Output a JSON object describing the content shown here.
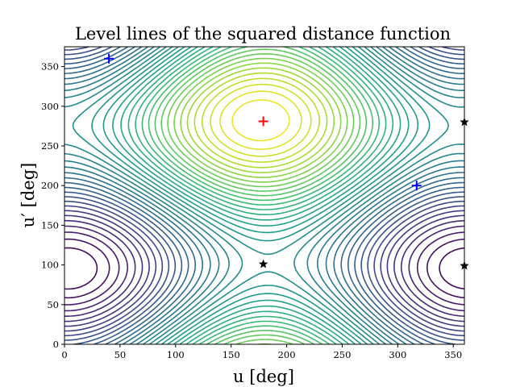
{
  "chart_data": {
    "type": "contour",
    "title": "Level lines of the squared distance function",
    "xlabel": "u [deg]",
    "ylabel": "u′ [deg]",
    "xlim": [
      0,
      360
    ],
    "ylim": [
      0,
      375
    ],
    "xticks": [
      0,
      50,
      100,
      150,
      200,
      250,
      300,
      350
    ],
    "yticks": [
      0,
      50,
      100,
      150,
      200,
      250,
      300,
      350
    ],
    "grid": false,
    "colormap": [
      "#440154",
      "#482878",
      "#3e4989",
      "#31688e",
      "#26828e",
      "#1f9e89",
      "#35b779",
      "#6ece58",
      "#b5de2b",
      "#fde725"
    ],
    "markers": [
      {
        "symbol": "plus",
        "color": "#ff0000",
        "x": 179,
        "y": 281
      },
      {
        "symbol": "plus",
        "color": "#0000ff",
        "x": 40,
        "y": 360
      },
      {
        "symbol": "plus",
        "color": "#0000ff",
        "x": 317,
        "y": 200
      },
      {
        "symbol": "star",
        "color": "#000000",
        "x": 179,
        "y": 101
      },
      {
        "symbol": "star",
        "color": "#000000",
        "x": 360,
        "y": 280
      },
      {
        "symbol": "star",
        "color": "#000000",
        "x": 360,
        "y": 99
      }
    ]
  }
}
